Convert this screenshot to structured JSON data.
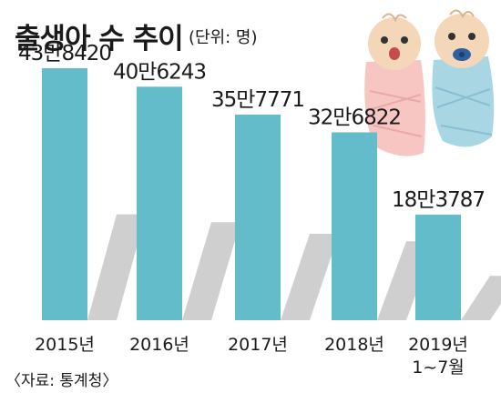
{
  "chart_data": {
    "type": "bar",
    "title": "출생아 수 추이",
    "unit_note": "(단위: 명)",
    "categories": [
      "2015년",
      "2016년",
      "2017년",
      "2018년",
      "2019년 1~7월"
    ],
    "category_lines": [
      [
        "2015년"
      ],
      [
        "2016년"
      ],
      [
        "2017년"
      ],
      [
        "2018년"
      ],
      [
        "2019년",
        "1~7월"
      ]
    ],
    "values": [
      438420,
      406243,
      357771,
      326822,
      183787
    ],
    "value_labels": [
      "43만8420",
      "40만6243",
      "35만7771",
      "32만6822",
      "18만3787"
    ],
    "ylim": [
      0,
      438420
    ],
    "grid": false,
    "colors": {
      "bar": "#63bcc9",
      "shadow": "#cfcfcf"
    },
    "source": "〈자료: 통계청〉"
  },
  "illustration": {
    "icons": [
      "crying-baby-icon",
      "baby-with-pacifier-icon"
    ],
    "colors": {
      "pink_blanket": "#f7c6c3",
      "blue_blanket": "#a9d6e3",
      "skin": "#f4d6b8"
    }
  }
}
